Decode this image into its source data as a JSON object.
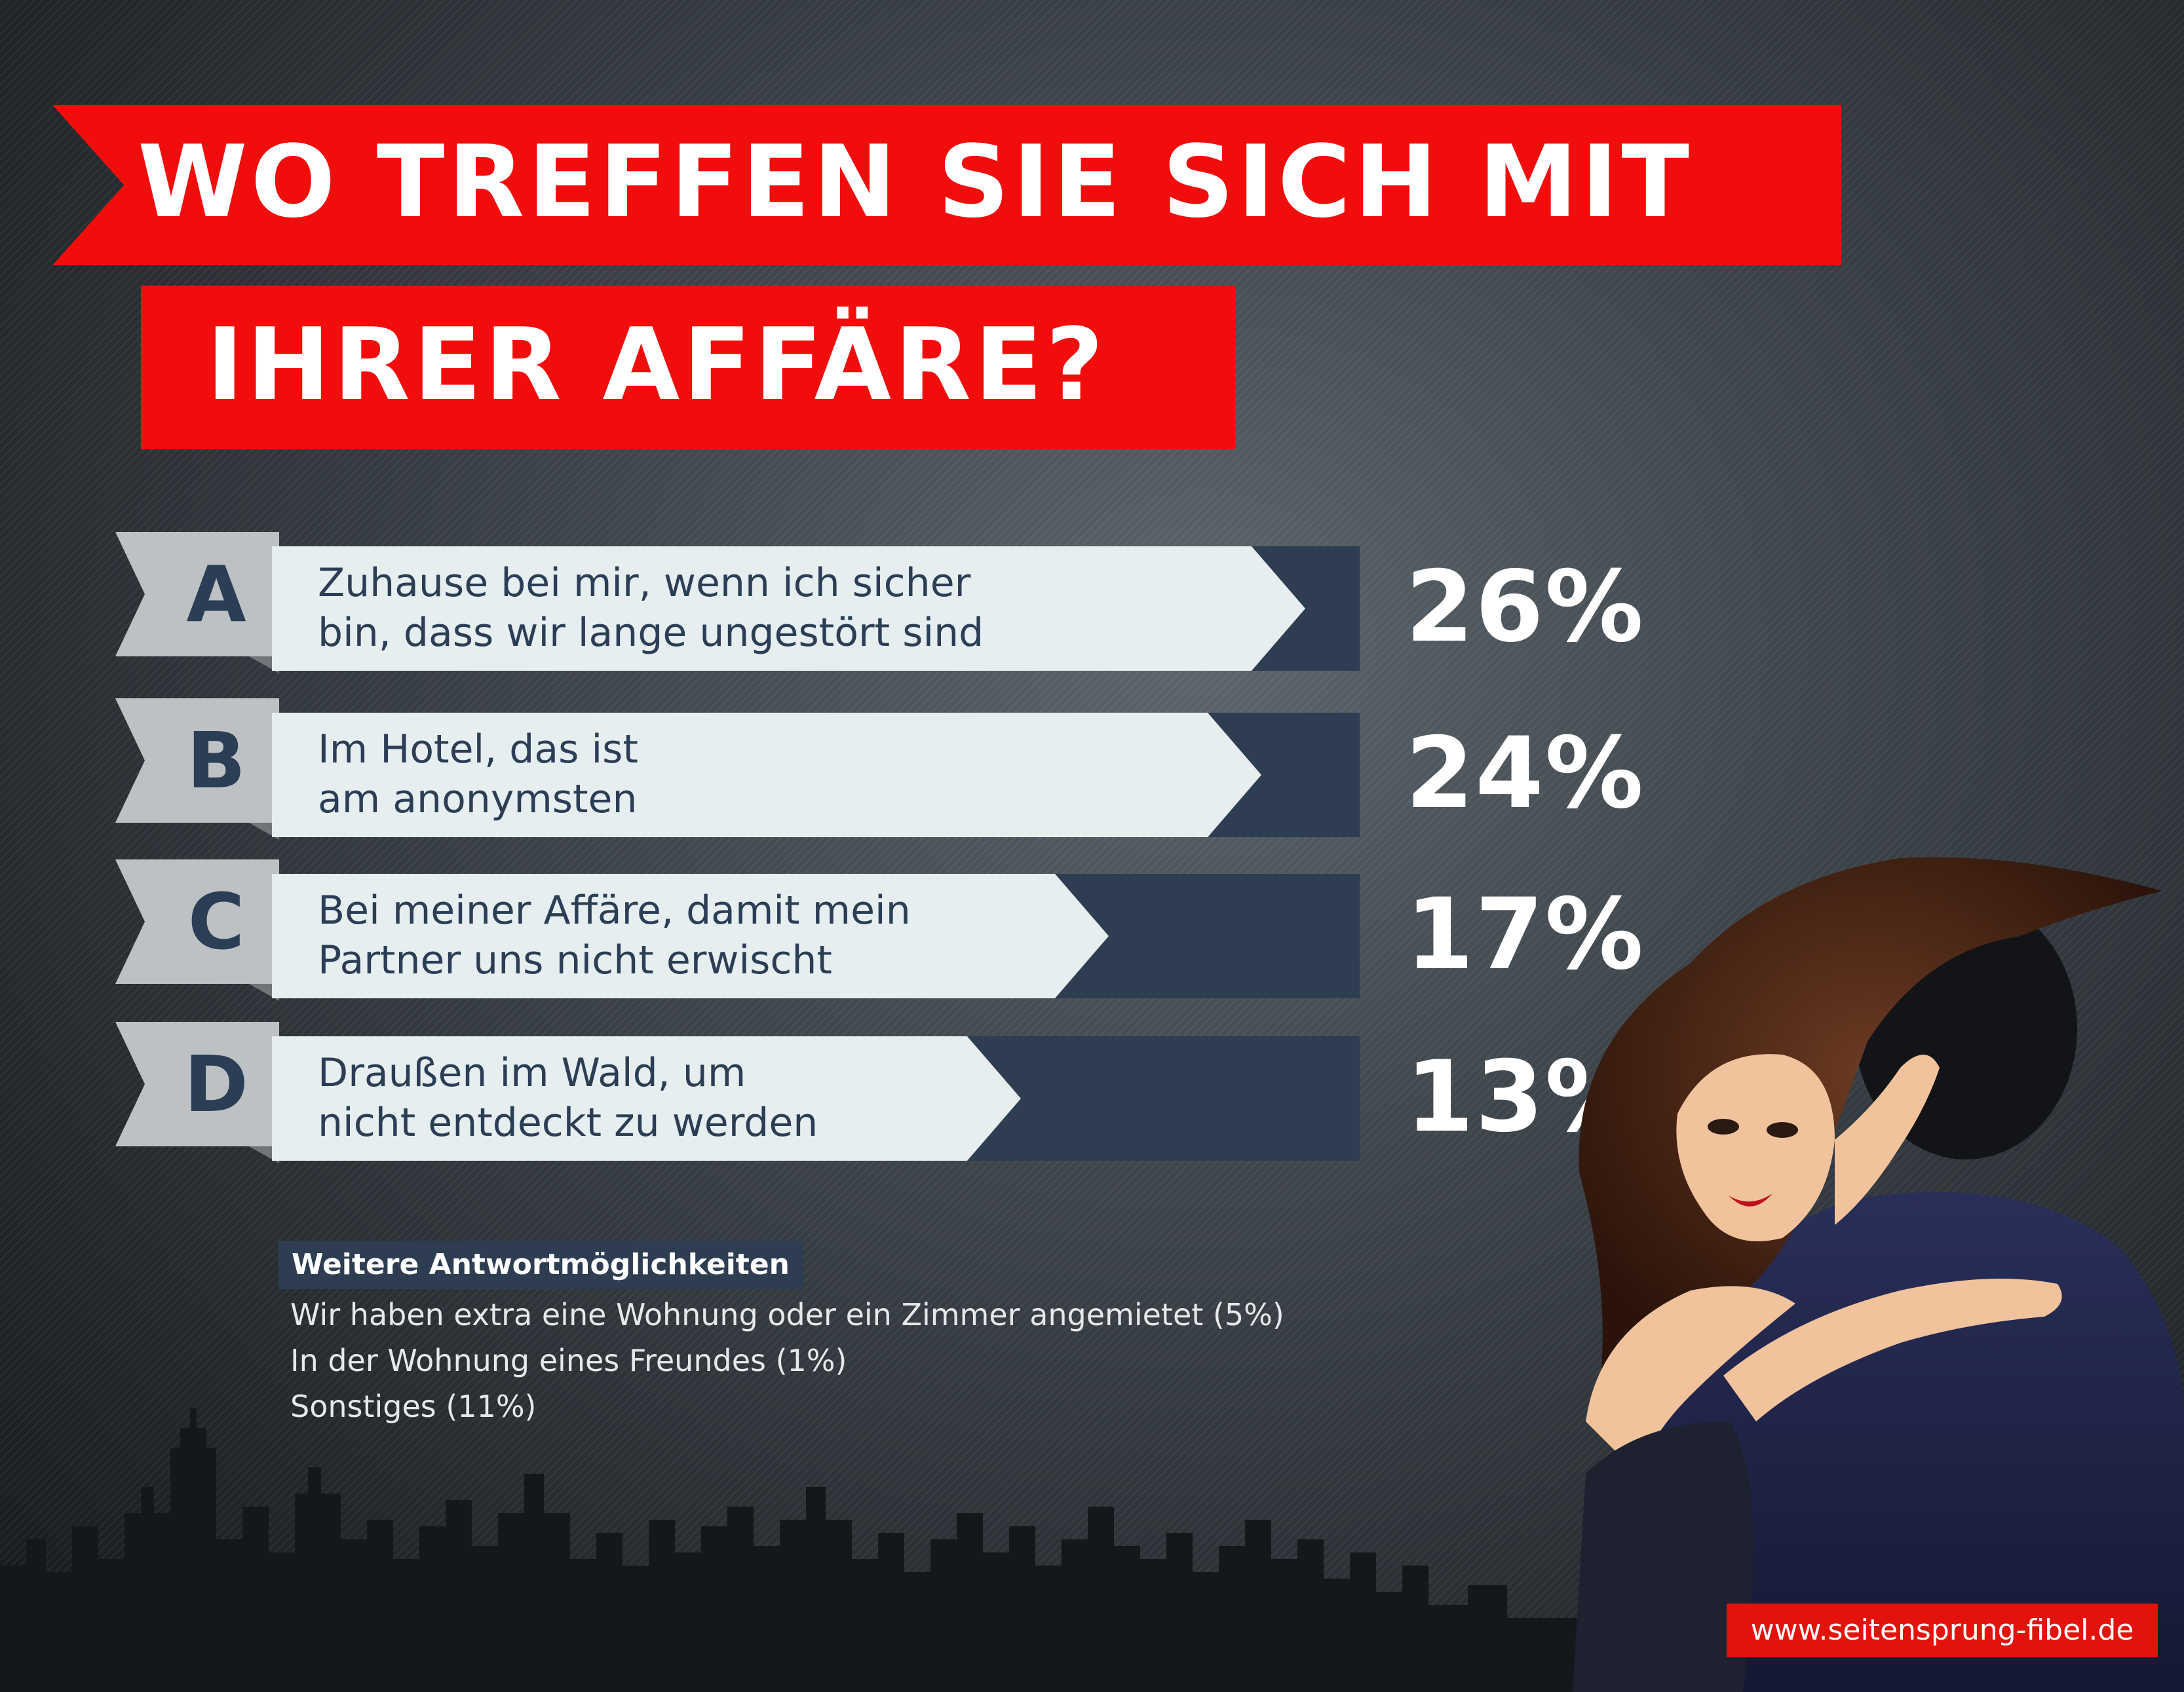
{
  "title": {
    "line1": "WO TREFFEN SIE SICH MIT",
    "line2": "IHRER AFFÄRE?"
  },
  "answers": [
    {
      "letter": "A",
      "text_line1": "Zuhause bei mir, wenn ich sicher",
      "text_line2": "bin, dass wir lange ungestört sind",
      "percent_label": "26%",
      "percent": 26
    },
    {
      "letter": "B",
      "text_line1": "Im Hotel, das ist",
      "text_line2": "am anonymsten",
      "percent_label": "24%",
      "percent": 24
    },
    {
      "letter": "C",
      "text_line1": "Bei meiner Affäre, damit mein",
      "text_line2": "Partner uns nicht erwischt",
      "percent_label": "17%",
      "percent": 17
    },
    {
      "letter": "D",
      "text_line1": "Draußen im Wald, um",
      "text_line2": "nicht entdeckt zu werden",
      "percent_label": "13%",
      "percent": 13
    }
  ],
  "more": {
    "heading": "Weitere Antwortmöglichkeiten",
    "items": [
      "Wir haben extra eine Wohnung oder ein Zimmer angemietet (5%)",
      "In der Wohnung eines Freundes (1%)",
      "Sonstiges (11%)"
    ]
  },
  "url": "www.seitensprung-fibel.de",
  "colors": {
    "banner_red": "#f20d0d",
    "bar_navy": "#2e3d52",
    "bar_light": "#e7eeef",
    "letter_tab": "#bdc1c3"
  }
}
